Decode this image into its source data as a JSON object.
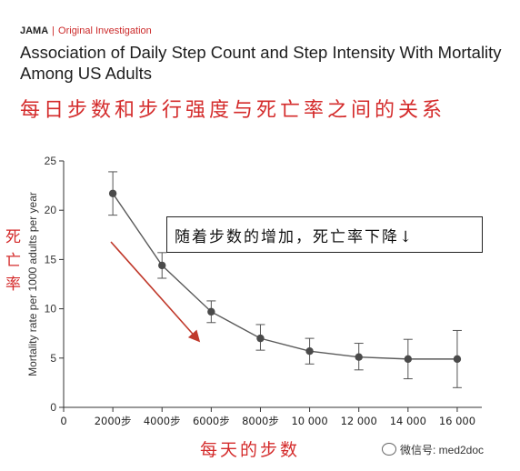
{
  "header": {
    "journal": "JAMA",
    "article_type": "Original Investigation",
    "title": "Association of Daily Step Count and Step Intensity With Mortality Among US Adults",
    "cn_title": "每日步数和步行强度与死亡率之间的关系"
  },
  "annotations": {
    "callout": "随着步数的增加，死亡率下降↓",
    "cn_ylabel": "死亡率",
    "cn_xlabel": "每天的步数",
    "watermark": "微信号: med2doc"
  },
  "colors": {
    "line": "#5a5a5a",
    "marker": "#4a4a4a",
    "arrow": "#c0392b",
    "accent_red": "#d42b2b"
  },
  "chart_data": {
    "type": "line",
    "title": "",
    "xlabel": "",
    "ylabel": "Mortality rate per 1000 adults per year",
    "xlim": [
      0,
      17000
    ],
    "ylim": [
      0,
      25
    ],
    "x_ticks": [
      {
        "value": 0,
        "label": "0"
      },
      {
        "value": 2000,
        "label": "2000步"
      },
      {
        "value": 4000,
        "label": "4000步"
      },
      {
        "value": 6000,
        "label": "6000步"
      },
      {
        "value": 8000,
        "label": "8000步"
      },
      {
        "value": 10000,
        "label": "10 000"
      },
      {
        "value": 12000,
        "label": "12 000"
      },
      {
        "value": 14000,
        "label": "14 000"
      },
      {
        "value": 16000,
        "label": "16 000"
      }
    ],
    "y_ticks": [
      0,
      5,
      10,
      15,
      20,
      25
    ],
    "grid": false,
    "series": [
      {
        "x": [
          2000,
          4000,
          6000,
          8000,
          10000,
          12000,
          14000,
          16000
        ],
        "y": [
          21.7,
          14.4,
          9.7,
          7.0,
          5.7,
          5.1,
          4.9,
          4.9
        ],
        "ci_low": [
          19.5,
          13.1,
          8.6,
          5.8,
          4.4,
          3.8,
          2.9,
          2.0
        ],
        "ci_high": [
          23.9,
          15.7,
          10.8,
          8.4,
          7.0,
          6.5,
          6.9,
          7.8
        ]
      }
    ]
  }
}
